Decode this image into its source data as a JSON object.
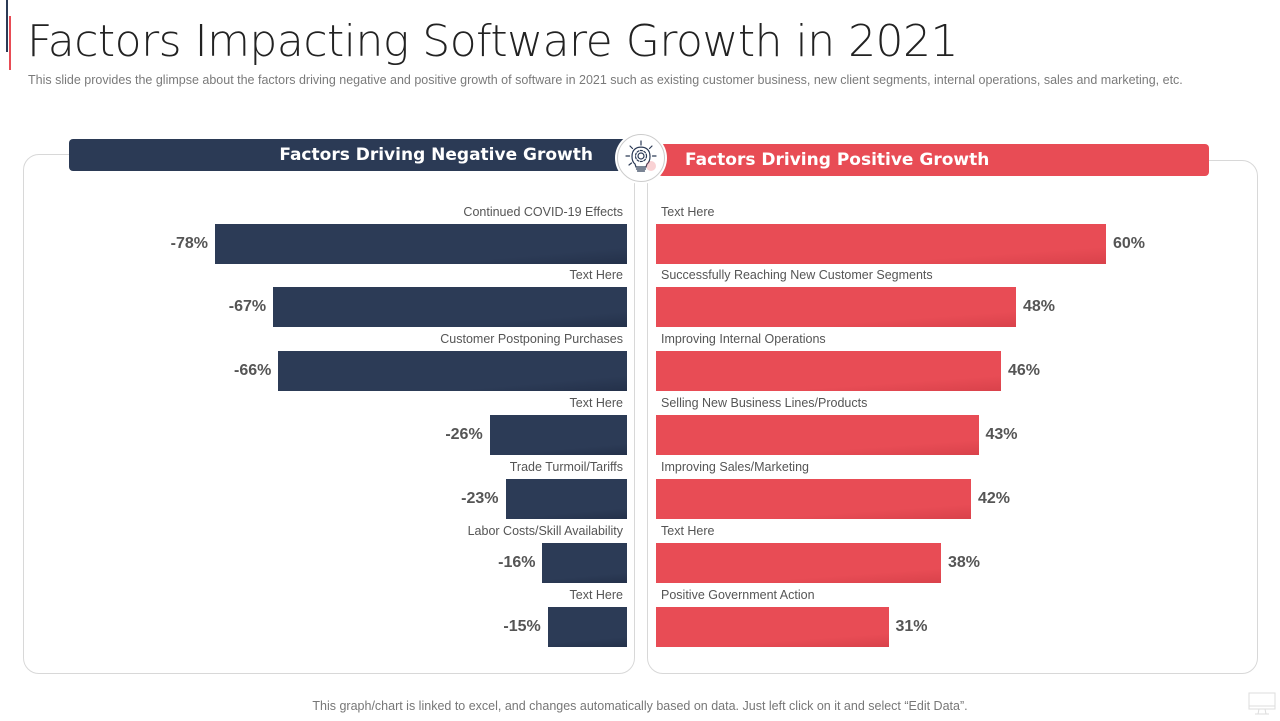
{
  "slide": {
    "title": "Factors Impacting Software Growth in 2021",
    "subtitle": "This slide provides  the glimpse about the factors driving  negative  and positive  growth  of software  in 2021 such as existing customer business, new client segments, internal operations, sales and marketing, etc.",
    "footnote": "This graph/chart is linked to excel, and changes automatically based on data. Just left click on it and select “Edit Data”.",
    "center_icon": "lightbulb-gear-icon",
    "corner_icon": "monitor-icon"
  },
  "colors": {
    "negative": "#2b3a55",
    "positive": "#e84c55",
    "text": "#555555"
  },
  "chart_data": [
    {
      "type": "bar",
      "orientation": "horizontal",
      "title": "Factors Driving Negative Growth",
      "categories": [
        "Continued  COVID-19  Effects",
        "Text Here",
        "Customer Postponing Purchases",
        "Text Here",
        "Trade  Turmoil/Tariffs",
        "Labor Costs/Skill Availability",
        "Text Here"
      ],
      "values": [
        -78,
        -67,
        -66,
        -26,
        -23,
        -16,
        -15
      ],
      "labels": [
        "-78%",
        "-67%",
        "-66%",
        "-26%",
        "-23%",
        "-16%",
        "-15%"
      ],
      "unit": "%",
      "xlim": [
        -78,
        0
      ],
      "grid": false
    },
    {
      "type": "bar",
      "orientation": "horizontal",
      "title": "Factors Driving Positive Growth",
      "categories": [
        "Text Here",
        "Successfully Reaching  New  Customer  Segments",
        "Improving  Internal  Operations",
        "Selling New  Business Lines/Products",
        "Improving  Sales/Marketing",
        "Text Here",
        "Positive  Government  Action"
      ],
      "values": [
        60,
        48,
        46,
        43,
        42,
        38,
        31
      ],
      "labels": [
        "60%",
        "48%",
        "46%",
        "43%",
        "42%",
        "38%",
        "31%"
      ],
      "unit": "%",
      "xlim": [
        0,
        60
      ],
      "grid": false
    }
  ]
}
